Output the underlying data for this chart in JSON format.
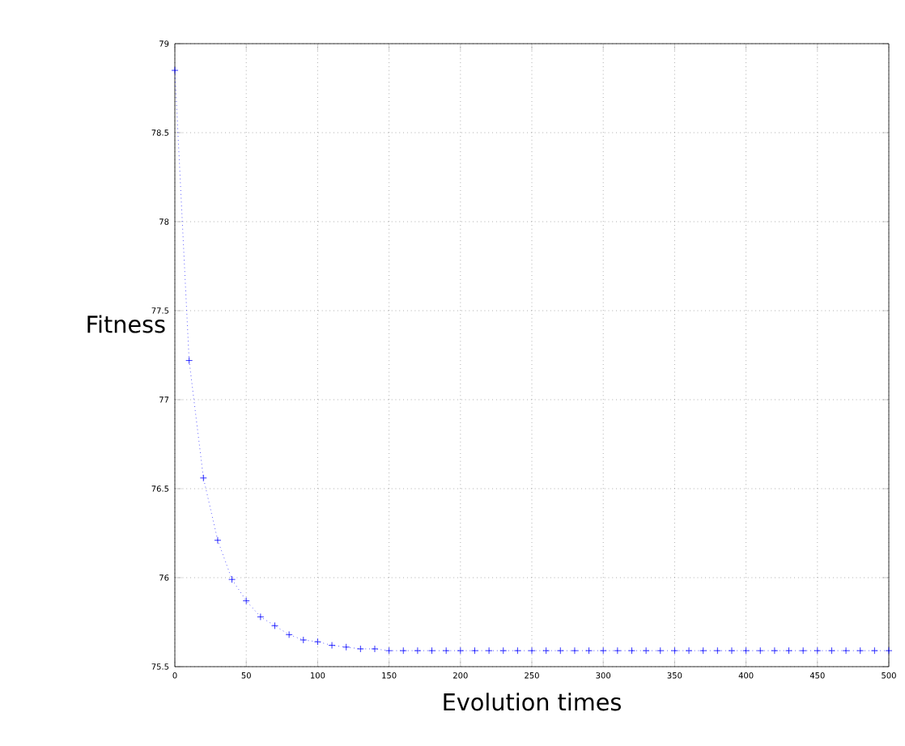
{
  "chart_data": {
    "type": "line",
    "xlabel": "Evolution times",
    "ylabel": "Fitness",
    "x": [
      0,
      10,
      20,
      30,
      40,
      50,
      60,
      70,
      80,
      90,
      100,
      110,
      120,
      130,
      140,
      150,
      160,
      170,
      180,
      190,
      200,
      210,
      220,
      230,
      240,
      250,
      260,
      270,
      280,
      290,
      300,
      310,
      320,
      330,
      340,
      350,
      360,
      370,
      380,
      390,
      400,
      410,
      420,
      430,
      440,
      450,
      460,
      470,
      480,
      490,
      500
    ],
    "series": [
      {
        "color": "#0000ff",
        "values": [
          78.85,
          77.22,
          76.56,
          76.21,
          75.99,
          75.87,
          75.78,
          75.73,
          75.68,
          75.65,
          75.64,
          75.62,
          75.61,
          75.6,
          75.6,
          75.59,
          75.59,
          75.59,
          75.59,
          75.59,
          75.59,
          75.59,
          75.59,
          75.59,
          75.59,
          75.59,
          75.59,
          75.59,
          75.59,
          75.59,
          75.59,
          75.59,
          75.59,
          75.59,
          75.59,
          75.59,
          75.59,
          75.59,
          75.59,
          75.59,
          75.59,
          75.59,
          75.59,
          75.59,
          75.59,
          75.59,
          75.59,
          75.59,
          75.59,
          75.59,
          75.59
        ]
      }
    ],
    "xlim": [
      0,
      500
    ],
    "xticks": [
      0,
      50,
      100,
      150,
      200,
      250,
      300,
      350,
      400,
      450,
      500
    ],
    "ylim": [
      75.5,
      79
    ],
    "yticks": [
      75.5,
      76,
      76.5,
      77,
      77.5,
      78,
      78.5,
      79
    ],
    "grid": true,
    "marker": "cross",
    "line_style": "dotted"
  }
}
